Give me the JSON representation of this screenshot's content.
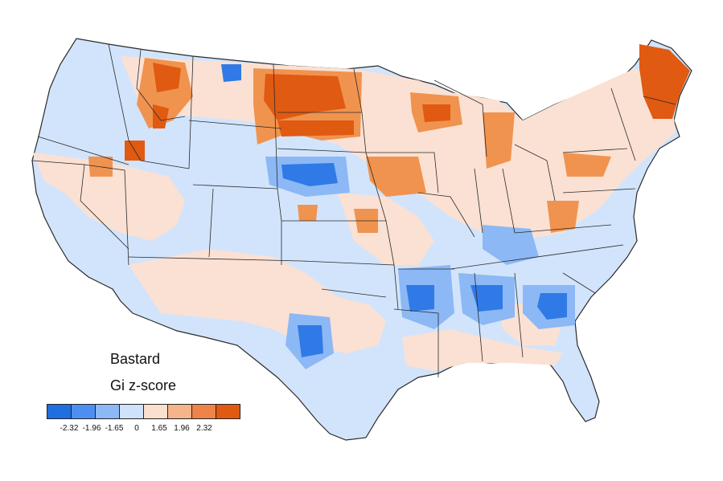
{
  "map": {
    "title": "Bastard",
    "legend_title": "Gi z-score",
    "legend": {
      "colors": [
        "#1f6fe0",
        "#4d8ff0",
        "#8cb8f5",
        "#cfe2fb",
        "#fbe0d0",
        "#f5b48a",
        "#ee8447",
        "#e05a12"
      ],
      "ticks": [
        "-2.32",
        "-1.96",
        "-1.65",
        "0",
        "1.65",
        "1.96",
        "2.32"
      ]
    },
    "base_color": "#d2e4fb",
    "warm_base_color": "#fbe1d3",
    "border_color": "#2a2a2a"
  }
}
